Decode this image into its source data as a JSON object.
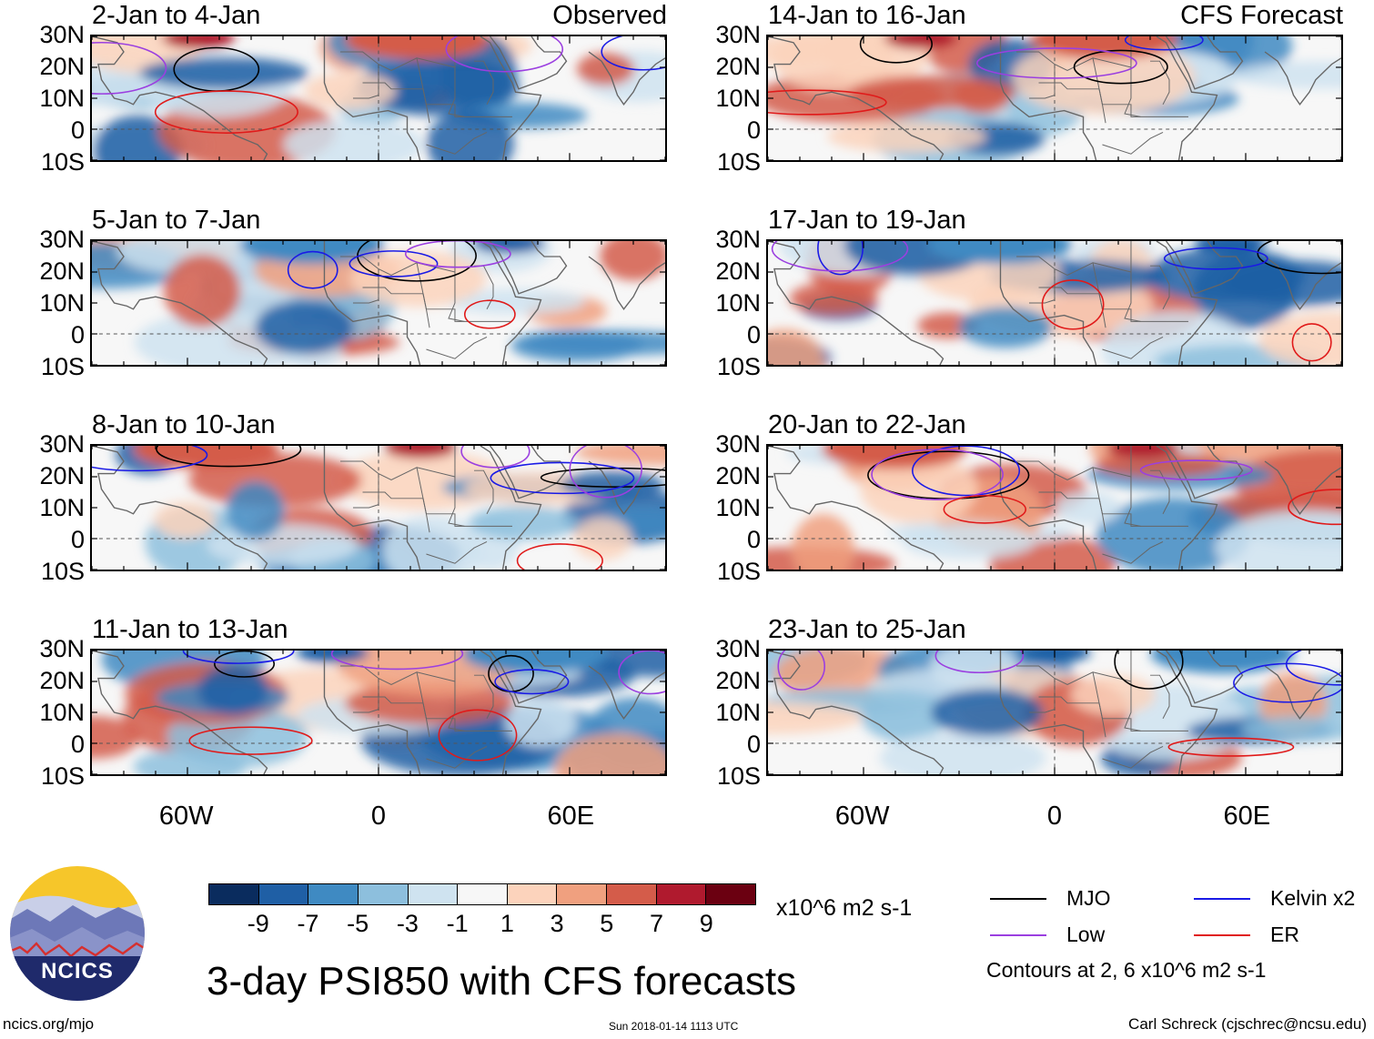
{
  "panels": [
    {
      "date_range": "2-Jan to 4-Jan",
      "tag": "Observed"
    },
    {
      "date_range": "5-Jan to 7-Jan",
      "tag": ""
    },
    {
      "date_range": "8-Jan to 10-Jan",
      "tag": ""
    },
    {
      "date_range": "11-Jan to 13-Jan",
      "tag": ""
    },
    {
      "date_range": "14-Jan to 16-Jan",
      "tag": "CFS Forecast"
    },
    {
      "date_range": "17-Jan to 19-Jan",
      "tag": ""
    },
    {
      "date_range": "20-Jan to 22-Jan",
      "tag": ""
    },
    {
      "date_range": "23-Jan to 25-Jan",
      "tag": ""
    }
  ],
  "lat_ticks": [
    "30N",
    "20N",
    "10N",
    "0",
    "10S"
  ],
  "lon_ticks": [
    "60W",
    "0",
    "60E"
  ],
  "colorbar": {
    "colors": [
      "#0a2c5e",
      "#1f5fa5",
      "#3f8ac2",
      "#8dbfdd",
      "#cfe3f0",
      "#f7f7f7",
      "#fcd3bc",
      "#f0a07f",
      "#d45c4a",
      "#b01a2e",
      "#6b0011"
    ],
    "labels": [
      "-9",
      "-7",
      "-5",
      "-3",
      "-1",
      "1",
      "3",
      "5",
      "7",
      "9"
    ],
    "units": "x10^6 m2 s-1"
  },
  "legend": {
    "items": [
      {
        "label": "MJO",
        "color": "#000000"
      },
      {
        "label": "Kelvin x2",
        "color": "#1a1ae6"
      },
      {
        "label": "Low",
        "color": "#9b3fe0"
      },
      {
        "label": "ER",
        "color": "#e01a1a"
      }
    ],
    "contours_note": "Contours at 2, 6 x10^6 m2 s-1"
  },
  "logo": {
    "text": "NCICS"
  },
  "main_title": "3-day PSI850 with CFS forecasts",
  "footer": {
    "url": "ncics.org/mjo",
    "timestamp": "Sun 2018-01-14 1113 UTC",
    "credit": "Carl Schreck (cjschrec@ncsu.edu)"
  }
}
